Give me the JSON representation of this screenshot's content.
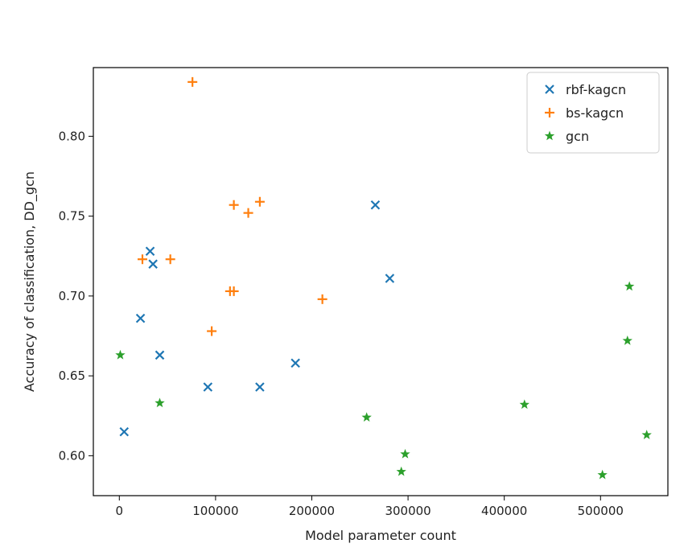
{
  "chart_data": {
    "type": "scatter",
    "xlabel": "Model parameter count",
    "ylabel": "Accuracy of classification, DD_gcn",
    "xlim": [
      -27000,
      570000
    ],
    "ylim": [
      0.575,
      0.843
    ],
    "x_ticks": [
      0,
      100000,
      200000,
      300000,
      400000,
      500000
    ],
    "x_tick_labels": [
      "0",
      "100000",
      "200000",
      "300000",
      "400000",
      "500000"
    ],
    "y_ticks": [
      0.6,
      0.65,
      0.7,
      0.75,
      0.8
    ],
    "y_tick_labels": [
      "0.60",
      "0.65",
      "0.70",
      "0.75",
      "0.80"
    ],
    "grid": false,
    "legend_position": "top-right",
    "series": [
      {
        "name": "rbf-kagcn",
        "marker": "x",
        "color": "#1f77b4",
        "points": [
          {
            "x": 5000,
            "y": 0.615
          },
          {
            "x": 22000,
            "y": 0.686
          },
          {
            "x": 32000,
            "y": 0.728
          },
          {
            "x": 35000,
            "y": 0.72
          },
          {
            "x": 42000,
            "y": 0.663
          },
          {
            "x": 92000,
            "y": 0.643
          },
          {
            "x": 146000,
            "y": 0.643
          },
          {
            "x": 183000,
            "y": 0.658
          },
          {
            "x": 266000,
            "y": 0.757
          },
          {
            "x": 281000,
            "y": 0.711
          }
        ]
      },
      {
        "name": "bs-kagcn",
        "marker": "plus",
        "color": "#ff7f0e",
        "points": [
          {
            "x": 76000,
            "y": 0.834
          },
          {
            "x": 24000,
            "y": 0.723
          },
          {
            "x": 53000,
            "y": 0.723
          },
          {
            "x": 96000,
            "y": 0.678
          },
          {
            "x": 115000,
            "y": 0.703
          },
          {
            "x": 119000,
            "y": 0.703
          },
          {
            "x": 119000,
            "y": 0.757
          },
          {
            "x": 134000,
            "y": 0.752
          },
          {
            "x": 146000,
            "y": 0.759
          },
          {
            "x": 211000,
            "y": 0.698
          }
        ]
      },
      {
        "name": "gcn",
        "marker": "star",
        "color": "#2ca02c",
        "points": [
          {
            "x": 1000,
            "y": 0.663
          },
          {
            "x": 42000,
            "y": 0.633
          },
          {
            "x": 257000,
            "y": 0.624
          },
          {
            "x": 293000,
            "y": 0.59
          },
          {
            "x": 297000,
            "y": 0.601
          },
          {
            "x": 421000,
            "y": 0.632
          },
          {
            "x": 502000,
            "y": 0.588
          },
          {
            "x": 528000,
            "y": 0.672
          },
          {
            "x": 530000,
            "y": 0.706
          },
          {
            "x": 548000,
            "y": 0.613
          }
        ]
      }
    ]
  }
}
